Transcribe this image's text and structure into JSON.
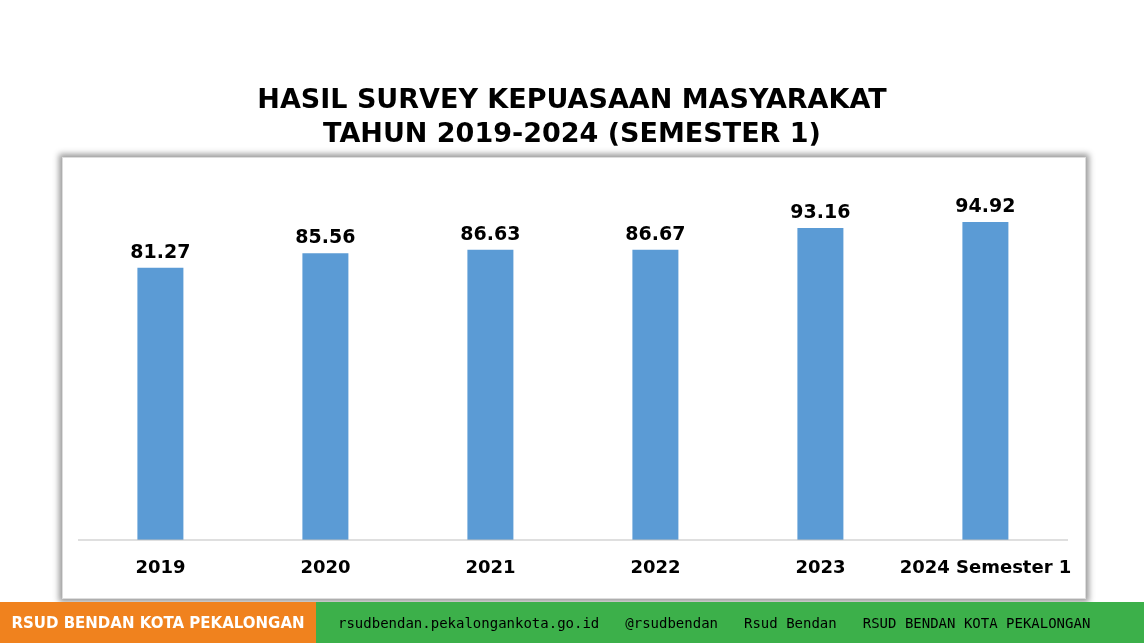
{
  "chart_data": {
    "type": "bar",
    "title": "HASIL SURVEY KEPUASAAN MASYARAKAT\nTAHUN 2019-2024 (SEMESTER 1)",
    "categories": [
      "2019",
      "2020",
      "2021",
      "2022",
      "2023",
      "2024 Semester 1"
    ],
    "values": [
      81.27,
      85.56,
      86.63,
      86.67,
      93.16,
      94.92
    ],
    "color": "#5b9bd5",
    "tick_labels": "x",
    "data_labels": true,
    "annotations": [
      "RSUD BENDAN KOTA PEKALONGAN",
      "rsudbendan.pekalongankota.go.id",
      "@rsudbendan",
      "Rsud Bendan",
      "RSUD BENDAN KOTA PEKALONGAN"
    ]
  }
}
